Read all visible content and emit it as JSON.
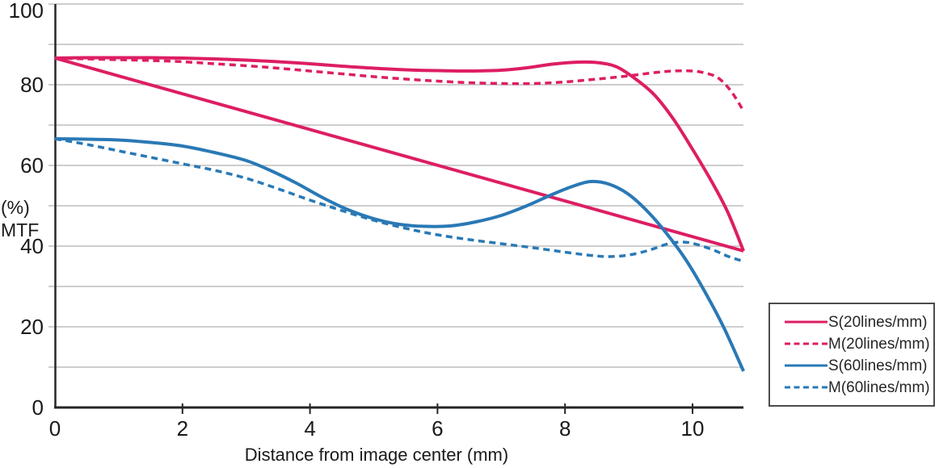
{
  "colors": {
    "pink": "#DD1E63",
    "blue": "#2979B5",
    "grid": "#bdbdbd",
    "axis": "#262626",
    "text": "#1a1a1a"
  },
  "y_axis_unit_lines": [
    "(%)",
    "MTF"
  ],
  "legend": {
    "items": [
      {
        "id": "s20",
        "label": "S(20lines/mm)",
        "color": "#DD1E63",
        "style": "solid"
      },
      {
        "id": "m20",
        "label": "M(20lines/mm)",
        "color": "#DD1E63",
        "style": "dashed"
      },
      {
        "id": "s60",
        "label": "S(60lines/mm)",
        "color": "#2979B5",
        "style": "solid"
      },
      {
        "id": "m60",
        "label": "M(60lines/mm)",
        "color": "#2979B5",
        "style": "dashed"
      }
    ]
  },
  "chart_data": {
    "type": "line",
    "title": "",
    "xlabel": "Distance from image center (mm)",
    "ylabel": "(%) MTF",
    "xlim": [
      0,
      10.8
    ],
    "ylim": [
      0,
      100
    ],
    "x_ticks": [
      0,
      2,
      4,
      6,
      8,
      10
    ],
    "y_ticks_labeled": [
      100,
      80,
      60,
      40,
      20,
      0
    ],
    "grid": "horizontal gridlines every 10 units",
    "legend_position": "outside lower right",
    "series": [
      {
        "name": "M(60lines/mm)",
        "color": "#2979B5",
        "style": "dashed",
        "points": [
          [
            0,
            66.6
          ],
          [
            0.5,
            65.2
          ],
          [
            1,
            63.6
          ],
          [
            1.5,
            62
          ],
          [
            2,
            60.4
          ],
          [
            2.5,
            58.8
          ],
          [
            3,
            56.8
          ],
          [
            3.5,
            54.2
          ],
          [
            4,
            51.4
          ],
          [
            4.5,
            48.8
          ],
          [
            5,
            46.4
          ],
          [
            5.5,
            44.4
          ],
          [
            6,
            42.8
          ],
          [
            6.5,
            41.6
          ],
          [
            7,
            40.6
          ],
          [
            7.5,
            39.6
          ],
          [
            8,
            38.5
          ],
          [
            8.4,
            37.7
          ],
          [
            8.7,
            37.4
          ],
          [
            9,
            37.8
          ],
          [
            9.3,
            38.9
          ],
          [
            9.6,
            40.5
          ],
          [
            9.8,
            41
          ],
          [
            10,
            40.7
          ],
          [
            10.3,
            39.2
          ],
          [
            10.55,
            37.5
          ],
          [
            10.8,
            36.2
          ]
        ]
      },
      {
        "name": "M(20lines/mm)",
        "color": "#DD1E63",
        "style": "dashed",
        "points": [
          [
            0,
            86.6
          ],
          [
            0.5,
            86.4
          ],
          [
            1,
            86.2
          ],
          [
            1.5,
            86
          ],
          [
            2,
            85.7
          ],
          [
            2.5,
            85.2
          ],
          [
            3,
            84.7
          ],
          [
            3.5,
            84.1
          ],
          [
            4,
            83.4
          ],
          [
            4.5,
            82.7
          ],
          [
            5,
            82
          ],
          [
            5.5,
            81.4
          ],
          [
            6,
            80.9
          ],
          [
            6.5,
            80.5
          ],
          [
            7,
            80.3
          ],
          [
            7.5,
            80.3
          ],
          [
            8,
            80.7
          ],
          [
            8.5,
            81.4
          ],
          [
            9,
            82.2
          ],
          [
            9.4,
            83
          ],
          [
            9.7,
            83.4
          ],
          [
            10,
            83.4
          ],
          [
            10.2,
            82.9
          ],
          [
            10.4,
            81.7
          ],
          [
            10.6,
            78.5
          ],
          [
            10.8,
            73.5
          ]
        ]
      },
      {
        "name": "unlabeled straight diagonal line",
        "color": "#DD1E63",
        "style": "solid",
        "points": [
          [
            0,
            86.6
          ],
          [
            10.8,
            38.8
          ]
        ]
      },
      {
        "name": "S(20lines/mm)",
        "color": "#DD1E63",
        "style": "solid",
        "points": [
          [
            0,
            86.6
          ],
          [
            0.5,
            86.7
          ],
          [
            1,
            86.7
          ],
          [
            1.5,
            86.7
          ],
          [
            2,
            86.6
          ],
          [
            2.5,
            86.4
          ],
          [
            3,
            86.1
          ],
          [
            3.5,
            85.7
          ],
          [
            4,
            85.2
          ],
          [
            4.5,
            84.6
          ],
          [
            5,
            84.1
          ],
          [
            5.5,
            83.7
          ],
          [
            6,
            83.5
          ],
          [
            6.5,
            83.4
          ],
          [
            7,
            83.6
          ],
          [
            7.4,
            84.2
          ],
          [
            7.8,
            85.1
          ],
          [
            8.2,
            85.6
          ],
          [
            8.5,
            85.5
          ],
          [
            8.8,
            84.5
          ],
          [
            9.1,
            81.5
          ],
          [
            9.4,
            77.5
          ],
          [
            9.7,
            71.5
          ],
          [
            10,
            64
          ],
          [
            10.3,
            56
          ],
          [
            10.55,
            48.5
          ],
          [
            10.8,
            38.8
          ]
        ]
      },
      {
        "name": "S(60lines/mm)",
        "color": "#2979B5",
        "style": "solid",
        "points": [
          [
            0,
            66.6
          ],
          [
            0.5,
            66.5
          ],
          [
            1,
            66.3
          ],
          [
            1.5,
            65.7
          ],
          [
            2,
            64.8
          ],
          [
            2.5,
            63.2
          ],
          [
            3,
            61.2
          ],
          [
            3.4,
            58.6
          ],
          [
            3.8,
            55.5
          ],
          [
            4.2,
            52
          ],
          [
            4.6,
            49
          ],
          [
            5,
            46.8
          ],
          [
            5.4,
            45.4
          ],
          [
            5.8,
            44.9
          ],
          [
            6.2,
            45
          ],
          [
            6.6,
            46
          ],
          [
            7,
            47.6
          ],
          [
            7.4,
            50
          ],
          [
            7.8,
            52.8
          ],
          [
            8.1,
            54.7
          ],
          [
            8.4,
            56
          ],
          [
            8.7,
            55.3
          ],
          [
            9,
            52.8
          ],
          [
            9.3,
            48.5
          ],
          [
            9.6,
            43
          ],
          [
            9.9,
            36.5
          ],
          [
            10.2,
            28.5
          ],
          [
            10.5,
            19.5
          ],
          [
            10.8,
            9
          ]
        ]
      }
    ]
  }
}
